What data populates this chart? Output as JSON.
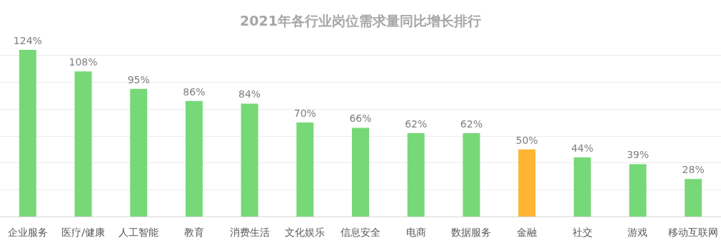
{
  "chart_data": {
    "type": "bar",
    "title": "2021年各行业岗位需求量同比增长排行",
    "categories": [
      "企业服务",
      "医疗/健康",
      "人工智能",
      "教育",
      "消费生活",
      "文化娱乐",
      "信息安全",
      "电商",
      "数据服务",
      "金融",
      "社交",
      "游戏",
      "移动互联网"
    ],
    "values": [
      124,
      108,
      95,
      86,
      84,
      70,
      66,
      62,
      62,
      50,
      44,
      39,
      28
    ],
    "colors": [
      "#77d877",
      "#77d877",
      "#77d877",
      "#77d877",
      "#77d877",
      "#77d877",
      "#77d877",
      "#77d877",
      "#77d877",
      "#ffb533",
      "#77d877",
      "#77d877",
      "#77d877"
    ],
    "value_labels": [
      "124%",
      "108%",
      "95%",
      "86%",
      "84%",
      "70%",
      "66%",
      "62%",
      "62%",
      "50%",
      "44%",
      "39%",
      "28%"
    ],
    "yticks": [
      {
        "value": 0,
        "label": null
      },
      {
        "value": 20,
        "label": null
      },
      {
        "value": 40,
        "label": null
      },
      {
        "value": 60,
        "label": null
      },
      {
        "value": 80,
        "label": null
      },
      {
        "value": 100,
        "label": null
      },
      {
        "value": 120,
        "label": null
      }
    ],
    "grid": "y",
    "tick_labels": "x"
  }
}
